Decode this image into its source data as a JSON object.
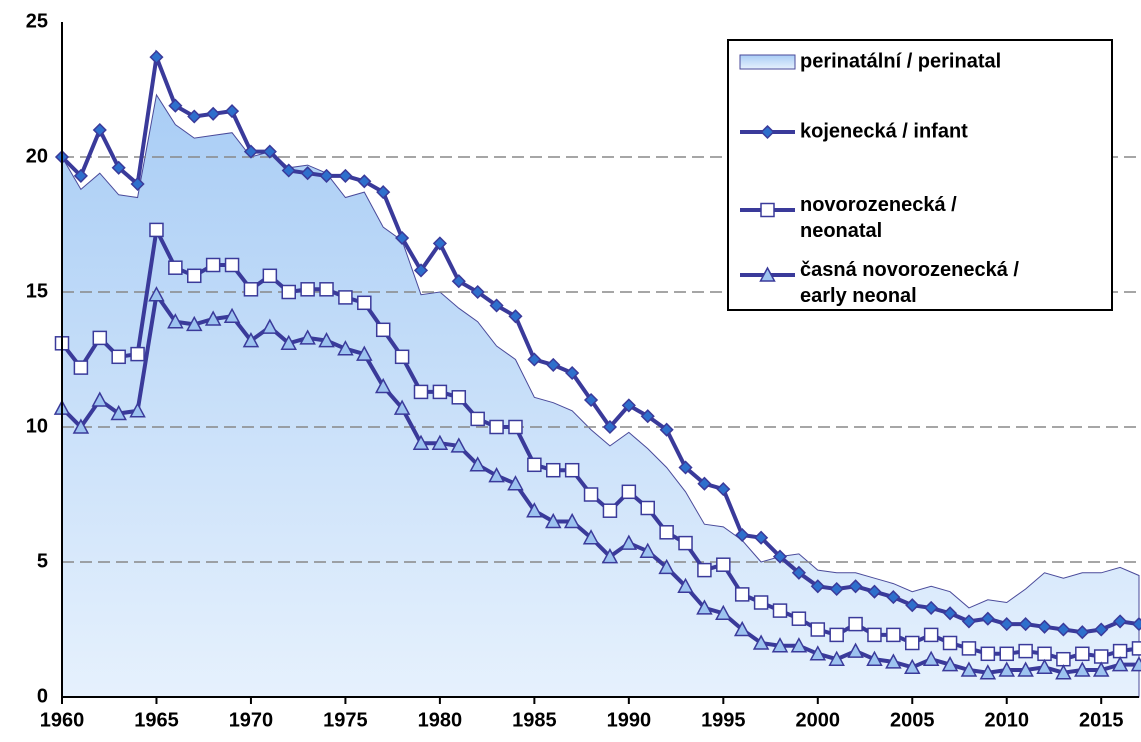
{
  "chart_data": {
    "type": "line",
    "x": [
      1960,
      1961,
      1962,
      1963,
      1964,
      1965,
      1966,
      1967,
      1968,
      1969,
      1970,
      1971,
      1972,
      1973,
      1974,
      1975,
      1976,
      1977,
      1978,
      1979,
      1980,
      1981,
      1982,
      1983,
      1984,
      1985,
      1986,
      1987,
      1988,
      1989,
      1990,
      1991,
      1992,
      1993,
      1994,
      1995,
      1996,
      1997,
      1998,
      1999,
      2000,
      2001,
      2002,
      2003,
      2004,
      2005,
      2006,
      2007,
      2008,
      2009,
      2010,
      2011,
      2012,
      2013,
      2014,
      2015,
      2016,
      2017
    ],
    "series": [
      {
        "name": "perinatální / perinatal",
        "kind": "area",
        "color": "#a9cdf5",
        "values": [
          20.0,
          18.8,
          19.4,
          18.6,
          18.5,
          22.3,
          21.2,
          20.7,
          20.8,
          20.9,
          20.0,
          20.2,
          19.6,
          19.7,
          19.4,
          18.5,
          18.7,
          17.4,
          16.9,
          14.9,
          15.0,
          14.4,
          13.9,
          13.0,
          12.5,
          11.1,
          10.9,
          10.6,
          9.9,
          9.3,
          9.8,
          9.2,
          8.5,
          7.6,
          6.4,
          6.3,
          5.8,
          5.0,
          5.2,
          5.3,
          4.7,
          4.6,
          4.6,
          4.4,
          4.2,
          3.9,
          4.1,
          3.9,
          3.3,
          3.6,
          3.5,
          4.0,
          4.6,
          4.4,
          4.6,
          4.6,
          4.8,
          4.5
        ]
      },
      {
        "name": "kojenecká / infant",
        "marker": "diamond",
        "color": "#2e6fcc",
        "values": [
          20.0,
          19.3,
          21.0,
          19.6,
          19.0,
          23.7,
          21.9,
          21.5,
          21.6,
          21.7,
          20.2,
          20.2,
          19.5,
          19.4,
          19.3,
          19.3,
          19.1,
          18.7,
          17.0,
          15.8,
          16.8,
          15.4,
          15.0,
          14.5,
          14.1,
          12.5,
          12.3,
          12.0,
          11.0,
          10.0,
          10.8,
          10.4,
          9.9,
          8.5,
          7.9,
          7.7,
          6.0,
          5.9,
          5.2,
          4.6,
          4.1,
          4.0,
          4.1,
          3.9,
          3.7,
          3.4,
          3.3,
          3.1,
          2.8,
          2.9,
          2.7,
          2.7,
          2.6,
          2.5,
          2.4,
          2.5,
          2.8,
          2.7
        ]
      },
      {
        "name": "novorozenecká / neonatal",
        "marker": "square",
        "color": "#ffffff",
        "values": [
          13.1,
          12.2,
          13.3,
          12.6,
          12.7,
          17.3,
          15.9,
          15.6,
          16.0,
          16.0,
          15.1,
          15.6,
          15.0,
          15.1,
          15.1,
          14.8,
          14.6,
          13.6,
          12.6,
          11.3,
          11.3,
          11.1,
          10.3,
          10.0,
          10.0,
          8.6,
          8.4,
          8.4,
          7.5,
          6.9,
          7.6,
          7.0,
          6.1,
          5.7,
          4.7,
          4.9,
          3.8,
          3.5,
          3.2,
          2.9,
          2.5,
          2.3,
          2.7,
          2.3,
          2.3,
          2.0,
          2.3,
          2.0,
          1.8,
          1.6,
          1.6,
          1.7,
          1.6,
          1.4,
          1.6,
          1.5,
          1.7,
          1.8
        ]
      },
      {
        "name": "časná novorozenecká / early neonal",
        "marker": "triangle",
        "color": "#9dc3f0",
        "values": [
          10.7,
          10.0,
          11.0,
          10.5,
          10.6,
          14.9,
          13.9,
          13.8,
          14.0,
          14.1,
          13.2,
          13.7,
          13.1,
          13.3,
          13.2,
          12.9,
          12.7,
          11.5,
          10.7,
          9.4,
          9.4,
          9.3,
          8.6,
          8.2,
          7.9,
          6.9,
          6.5,
          6.5,
          5.9,
          5.2,
          5.7,
          5.4,
          4.8,
          4.1,
          3.3,
          3.1,
          2.5,
          2.0,
          1.9,
          1.9,
          1.6,
          1.4,
          1.7,
          1.4,
          1.3,
          1.1,
          1.4,
          1.2,
          1.0,
          0.9,
          1.0,
          1.0,
          1.1,
          0.9,
          1.0,
          1.0,
          1.2,
          1.2
        ]
      }
    ],
    "line_color": "#3a3a9a",
    "xlim": [
      1960,
      2017
    ],
    "xticks": [
      1960,
      1965,
      1970,
      1975,
      1980,
      1985,
      1990,
      1995,
      2000,
      2005,
      2010,
      2015
    ],
    "ylim": [
      0,
      25
    ],
    "yticks": [
      0,
      5,
      10,
      15,
      20,
      25
    ],
    "grid": true,
    "legend": "upper right"
  }
}
